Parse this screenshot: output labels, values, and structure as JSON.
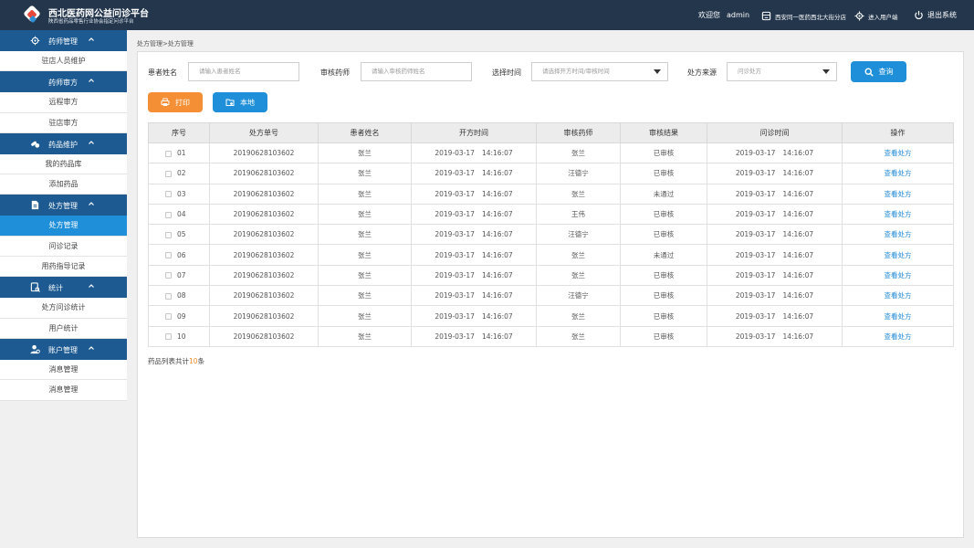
{
  "header": {
    "title": "西北医药网公益问诊平台",
    "subtitle": "陕西省药品零售行业协会指定问诊平台",
    "welcome": "欢迎您",
    "username": "admin",
    "store": "西安同一医药西北大街分店",
    "user_center": "进入用户端",
    "logout": "退出系统"
  },
  "sidebar": {
    "groups": [
      {
        "label": "药师管理",
        "icon": "user-gear-icon",
        "items": [
          "驻店人员维护"
        ]
      },
      {
        "label": "药师审方",
        "icon": "",
        "items": [
          "远程审方",
          "驻店审方"
        ]
      },
      {
        "label": "药品维护",
        "icon": "pills-icon",
        "items": [
          "我的药品库",
          "添加药品"
        ]
      },
      {
        "label": "处方管理",
        "icon": "prescription-icon",
        "items": [
          "处方管理",
          "问诊记录",
          "用药指导记录"
        ]
      },
      {
        "label": "统计",
        "icon": "statistics-icon",
        "items": [
          "处方问诊统计",
          "用户统计"
        ]
      },
      {
        "label": "账户管理",
        "icon": "account-icon",
        "items": [
          "消息管理",
          "消息管理"
        ]
      }
    ],
    "active_item": "处方管理"
  },
  "breadcrumb": "处方管理>处方管理",
  "filters": {
    "patient_label": "患者姓名",
    "patient_placeholder": "请输入患者姓名",
    "pharmacist_label": "审核药师",
    "pharmacist_placeholder": "请输入审核药师姓名",
    "time_label": "选择时间",
    "time_placeholder": "请选择开方时间/审核时间",
    "source_label": "处方来源",
    "source_value": "问诊处方",
    "search_label": "查询"
  },
  "actions": {
    "print_label": "打印",
    "local_label": "本地"
  },
  "table": {
    "headers": [
      "序号",
      "处方单号",
      "患者姓名",
      "开方时间",
      "审核药师",
      "审核结果",
      "问诊时间",
      "操作"
    ],
    "rows": [
      {
        "seq": "01",
        "order": "20190628103602",
        "patient": "张兰",
        "date": "2019-03-17",
        "time": "14:16:07",
        "pharmacist": "张兰",
        "result": "已审核",
        "failed": false,
        "idate": "2019-03-17",
        "itime": "14:16:07",
        "action": "查看处方"
      },
      {
        "seq": "02",
        "order": "20190628103602",
        "patient": "张兰",
        "date": "2019-03-17",
        "time": "14:16:07",
        "pharmacist": "汪德宁",
        "result": "已审核",
        "failed": false,
        "idate": "2019-03-17",
        "itime": "14:16:07",
        "action": "查看处方"
      },
      {
        "seq": "03",
        "order": "20190628103602",
        "patient": "张兰",
        "date": "2019-03-17",
        "time": "14:16:07",
        "pharmacist": "张兰",
        "result": "未通过",
        "failed": true,
        "idate": "2019-03-17",
        "itime": "14:16:07",
        "action": "查看处方"
      },
      {
        "seq": "04",
        "order": "20190628103602",
        "patient": "张兰",
        "date": "2019-03-17",
        "time": "14:16:07",
        "pharmacist": "王伟",
        "result": "已审核",
        "failed": false,
        "idate": "2019-03-17",
        "itime": "14:16:07",
        "action": "查看处方"
      },
      {
        "seq": "05",
        "order": "20190628103602",
        "patient": "张兰",
        "date": "2019-03-17",
        "time": "14:16:07",
        "pharmacist": "汪德宁",
        "result": "已审核",
        "failed": false,
        "idate": "2019-03-17",
        "itime": "14:16:07",
        "action": "查看处方"
      },
      {
        "seq": "06",
        "order": "20190628103602",
        "patient": "张兰",
        "date": "2019-03-17",
        "time": "14:16:07",
        "pharmacist": "张兰",
        "result": "未通过",
        "failed": true,
        "idate": "2019-03-17",
        "itime": "14:16:07",
        "action": "查看处方"
      },
      {
        "seq": "07",
        "order": "20190628103602",
        "patient": "张兰",
        "date": "2019-03-17",
        "time": "14:16:07",
        "pharmacist": "张兰",
        "result": "已审核",
        "failed": false,
        "idate": "2019-03-17",
        "itime": "14:16:07",
        "action": "查看处方"
      },
      {
        "seq": "08",
        "order": "20190628103602",
        "patient": "张兰",
        "date": "2019-03-17",
        "time": "14:16:07",
        "pharmacist": "汪德宁",
        "result": "已审核",
        "failed": false,
        "idate": "2019-03-17",
        "itime": "14:16:07",
        "action": "查看处方"
      },
      {
        "seq": "09",
        "order": "20190628103602",
        "patient": "张兰",
        "date": "2019-03-17",
        "time": "14:16:07",
        "pharmacist": "张兰",
        "result": "已审核",
        "failed": false,
        "idate": "2019-03-17",
        "itime": "14:16:07",
        "action": "查看处方"
      },
      {
        "seq": "10",
        "order": "20190628103602",
        "patient": "张兰",
        "date": "2019-03-17",
        "time": "14:16:07",
        "pharmacist": "张兰",
        "result": "已审核",
        "failed": false,
        "idate": "2019-03-17",
        "itime": "14:16:07",
        "action": "查看处方"
      }
    ]
  },
  "summary": {
    "prefix": "药品列表共计",
    "count": "10",
    "suffix": "条"
  },
  "colors": {
    "header_bg": "#23364c",
    "sidebar_group_bg": "#1c5a91",
    "sidebar_active_bg": "#1e8fd8",
    "search_button": "#1e8fd8",
    "print_button": "#f58f36",
    "local_button": "#1e8fd8",
    "failed_text": "#f08c2d",
    "link_text": "#1e88d6"
  }
}
